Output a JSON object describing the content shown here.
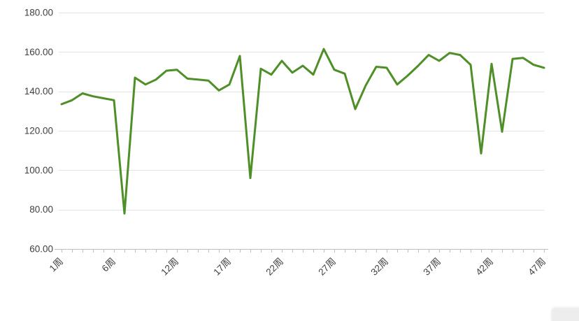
{
  "chart_data": {
    "type": "line",
    "title": "",
    "xlabel": "",
    "ylabel": "",
    "ylim": [
      60,
      180
    ],
    "grid": true,
    "legend_position": "none",
    "y_ticks": [
      {
        "value": 180,
        "label": "180.00"
      },
      {
        "value": 160,
        "label": "160.00"
      },
      {
        "value": 140,
        "label": "140.00"
      },
      {
        "value": 120,
        "label": "120.00"
      },
      {
        "value": 100,
        "label": "100.00"
      },
      {
        "value": 80,
        "label": "80.00"
      },
      {
        "value": 60,
        "label": "60.00"
      }
    ],
    "x_ticks": [
      {
        "week": 1,
        "label": "1周"
      },
      {
        "week": 6,
        "label": "6周"
      },
      {
        "week": 12,
        "label": "12周"
      },
      {
        "week": 17,
        "label": "17周"
      },
      {
        "week": 22,
        "label": "22周"
      },
      {
        "week": 27,
        "label": "27周"
      },
      {
        "week": 32,
        "label": "32周"
      },
      {
        "week": 37,
        "label": "37周"
      },
      {
        "week": 42,
        "label": "42周"
      },
      {
        "week": 47,
        "label": "47周"
      }
    ],
    "x_count": 47,
    "series": [
      {
        "name": "",
        "color": "#4e8f28",
        "values": [
          133.5,
          135.5,
          139,
          137.5,
          136.5,
          135.5,
          78,
          147,
          143.5,
          146,
          150.5,
          151,
          146.5,
          146,
          145.5,
          140.5,
          143.5,
          158,
          96,
          151.5,
          148.5,
          155.5,
          149.5,
          153,
          148.5,
          161.5,
          151,
          149,
          131,
          143,
          152.5,
          152,
          143.5,
          148,
          153,
          158.5,
          155.5,
          159.5,
          158.5,
          153.5,
          108.5,
          154,
          119.5,
          156.5,
          157,
          153.5,
          152
        ]
      }
    ]
  },
  "styles": {
    "line_color": "#4e8f28",
    "grid_color": "#e3e3e3",
    "axis_color": "#bdbdbd",
    "tick_text_color": "#3f3f3f",
    "background": "#ffffff"
  }
}
